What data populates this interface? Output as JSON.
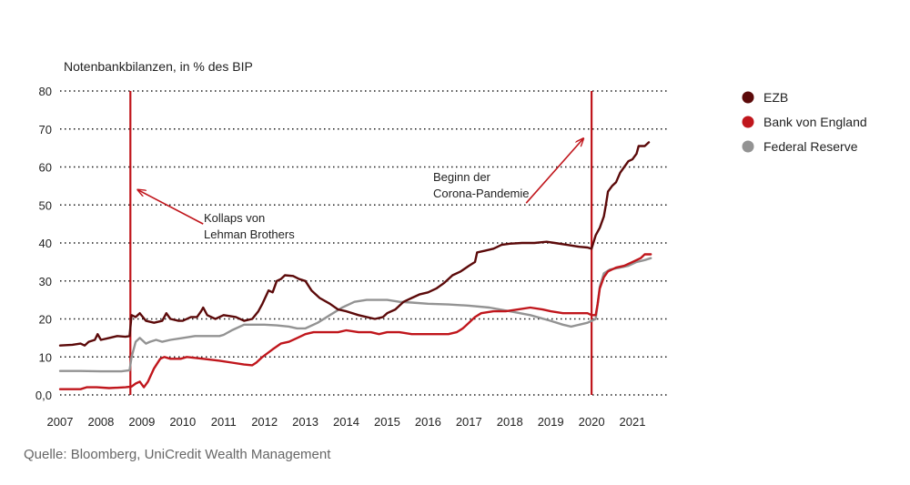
{
  "chart_data": {
    "type": "line",
    "ylabel": "Notenbankbilanzen, in % des BIP",
    "ylim": [
      0,
      80
    ],
    "xlim": [
      2007,
      2021.75
    ],
    "yticks": [
      0,
      10,
      20,
      30,
      40,
      50,
      60,
      70,
      80
    ],
    "ytick_labels": [
      "0,0",
      "10",
      "20",
      "30",
      "40",
      "50",
      "60",
      "70",
      "80"
    ],
    "xticks": [
      2007,
      2008,
      2009,
      2010,
      2011,
      2012,
      2013,
      2014,
      2015,
      2016,
      2017,
      2018,
      2019,
      2020,
      2021
    ],
    "xtick_labels": [
      "2007",
      "2008",
      "2009",
      "2010",
      "2011",
      "2012",
      "2013",
      "2014",
      "2015",
      "2016",
      "2017",
      "2018",
      "2019",
      "2020",
      "2021"
    ],
    "grid": "dotted horizontal",
    "legend_position": "top-right",
    "series": [
      {
        "name": "EZB",
        "color": "#5c0a0a",
        "points": [
          [
            2007.0,
            13.0
          ],
          [
            2007.3,
            13.2
          ],
          [
            2007.5,
            13.5
          ],
          [
            2007.6,
            13.0
          ],
          [
            2007.7,
            14.0
          ],
          [
            2007.85,
            14.5
          ],
          [
            2007.92,
            16.0
          ],
          [
            2008.0,
            14.5
          ],
          [
            2008.2,
            15.0
          ],
          [
            2008.4,
            15.5
          ],
          [
            2008.6,
            15.3
          ],
          [
            2008.7,
            15.5
          ],
          [
            2008.75,
            21.0
          ],
          [
            2008.85,
            20.5
          ],
          [
            2008.95,
            21.5
          ],
          [
            2009.1,
            19.5
          ],
          [
            2009.3,
            19.0
          ],
          [
            2009.5,
            19.5
          ],
          [
            2009.6,
            21.5
          ],
          [
            2009.7,
            20.0
          ],
          [
            2009.9,
            19.5
          ],
          [
            2010.0,
            19.5
          ],
          [
            2010.2,
            20.5
          ],
          [
            2010.35,
            20.5
          ],
          [
            2010.45,
            22.0
          ],
          [
            2010.5,
            23.0
          ],
          [
            2010.6,
            21.0
          ],
          [
            2010.8,
            20.0
          ],
          [
            2011.0,
            21.0
          ],
          [
            2011.3,
            20.5
          ],
          [
            2011.5,
            19.5
          ],
          [
            2011.7,
            20.0
          ],
          [
            2011.85,
            22.0
          ],
          [
            2011.95,
            24.0
          ],
          [
            2012.1,
            27.5
          ],
          [
            2012.2,
            27.0
          ],
          [
            2012.3,
            30.0
          ],
          [
            2012.4,
            30.5
          ],
          [
            2012.5,
            31.5
          ],
          [
            2012.7,
            31.3
          ],
          [
            2012.85,
            30.5
          ],
          [
            2013.0,
            30.0
          ],
          [
            2013.15,
            27.5
          ],
          [
            2013.35,
            25.5
          ],
          [
            2013.6,
            24.0
          ],
          [
            2013.8,
            22.5
          ],
          [
            2014.0,
            22.0
          ],
          [
            2014.3,
            21.0
          ],
          [
            2014.5,
            20.5
          ],
          [
            2014.7,
            20.0
          ],
          [
            2014.9,
            20.5
          ],
          [
            2015.0,
            21.5
          ],
          [
            2015.2,
            22.5
          ],
          [
            2015.4,
            24.5
          ],
          [
            2015.6,
            25.5
          ],
          [
            2015.8,
            26.5
          ],
          [
            2016.0,
            27.0
          ],
          [
            2016.2,
            28.0
          ],
          [
            2016.4,
            29.5
          ],
          [
            2016.6,
            31.5
          ],
          [
            2016.8,
            32.5
          ],
          [
            2017.0,
            34.0
          ],
          [
            2017.15,
            35.0
          ],
          [
            2017.2,
            37.5
          ],
          [
            2017.4,
            38.0
          ],
          [
            2017.6,
            38.5
          ],
          [
            2017.8,
            39.5
          ],
          [
            2018.0,
            39.8
          ],
          [
            2018.3,
            40.0
          ],
          [
            2018.6,
            40.0
          ],
          [
            2018.9,
            40.3
          ],
          [
            2019.1,
            40.0
          ],
          [
            2019.4,
            39.5
          ],
          [
            2019.7,
            39.0
          ],
          [
            2019.9,
            38.8
          ],
          [
            2020.0,
            38.5
          ],
          [
            2020.1,
            42.0
          ],
          [
            2020.2,
            44.0
          ],
          [
            2020.3,
            47.0
          ],
          [
            2020.35,
            50.0
          ],
          [
            2020.4,
            53.5
          ],
          [
            2020.5,
            55.0
          ],
          [
            2020.6,
            56.0
          ],
          [
            2020.7,
            58.5
          ],
          [
            2020.8,
            60.0
          ],
          [
            2020.9,
            61.5
          ],
          [
            2021.0,
            62.0
          ],
          [
            2021.1,
            63.5
          ],
          [
            2021.15,
            65.5
          ],
          [
            2021.3,
            65.5
          ],
          [
            2021.4,
            66.5
          ]
        ]
      },
      {
        "name": "Bank von England",
        "color": "#c0161c",
        "points": [
          [
            2007.0,
            1.5
          ],
          [
            2007.5,
            1.5
          ],
          [
            2007.65,
            2.0
          ],
          [
            2007.9,
            2.0
          ],
          [
            2008.2,
            1.8
          ],
          [
            2008.6,
            2.0
          ],
          [
            2008.75,
            2.2
          ],
          [
            2008.85,
            3.0
          ],
          [
            2008.95,
            3.5
          ],
          [
            2009.05,
            2.0
          ],
          [
            2009.15,
            3.5
          ],
          [
            2009.3,
            7.0
          ],
          [
            2009.45,
            9.5
          ],
          [
            2009.55,
            10.0
          ],
          [
            2009.7,
            9.5
          ],
          [
            2009.85,
            9.5
          ],
          [
            2009.95,
            9.5
          ],
          [
            2010.1,
            10.0
          ],
          [
            2010.5,
            9.5
          ],
          [
            2010.9,
            9.0
          ],
          [
            2011.2,
            8.5
          ],
          [
            2011.5,
            8.0
          ],
          [
            2011.7,
            7.8
          ],
          [
            2011.8,
            8.5
          ],
          [
            2011.95,
            10.0
          ],
          [
            2012.2,
            12.0
          ],
          [
            2012.4,
            13.5
          ],
          [
            2012.6,
            14.0
          ],
          [
            2012.8,
            15.0
          ],
          [
            2013.0,
            16.0
          ],
          [
            2013.2,
            16.5
          ],
          [
            2013.5,
            16.5
          ],
          [
            2013.8,
            16.5
          ],
          [
            2014.0,
            17.0
          ],
          [
            2014.3,
            16.5
          ],
          [
            2014.6,
            16.5
          ],
          [
            2014.8,
            16.0
          ],
          [
            2015.0,
            16.5
          ],
          [
            2015.3,
            16.5
          ],
          [
            2015.6,
            16.0
          ],
          [
            2015.9,
            16.0
          ],
          [
            2016.2,
            16.0
          ],
          [
            2016.5,
            16.0
          ],
          [
            2016.7,
            16.5
          ],
          [
            2016.85,
            17.5
          ],
          [
            2017.0,
            19.0
          ],
          [
            2017.15,
            20.5
          ],
          [
            2017.3,
            21.5
          ],
          [
            2017.6,
            22.0
          ],
          [
            2017.9,
            22.0
          ],
          [
            2018.2,
            22.5
          ],
          [
            2018.5,
            23.0
          ],
          [
            2018.8,
            22.5
          ],
          [
            2019.0,
            22.0
          ],
          [
            2019.3,
            21.5
          ],
          [
            2019.6,
            21.5
          ],
          [
            2019.9,
            21.5
          ],
          [
            2020.0,
            21.0
          ],
          [
            2020.1,
            21.0
          ],
          [
            2020.15,
            24.0
          ],
          [
            2020.2,
            28.0
          ],
          [
            2020.3,
            31.0
          ],
          [
            2020.4,
            32.5
          ],
          [
            2020.6,
            33.5
          ],
          [
            2020.8,
            34.0
          ],
          [
            2021.0,
            35.0
          ],
          [
            2021.2,
            36.0
          ],
          [
            2021.3,
            37.0
          ],
          [
            2021.45,
            37.0
          ]
        ]
      },
      {
        "name": "Federal Reserve",
        "color": "#939393",
        "points": [
          [
            2007.0,
            6.3
          ],
          [
            2007.5,
            6.3
          ],
          [
            2008.0,
            6.2
          ],
          [
            2008.5,
            6.2
          ],
          [
            2008.7,
            6.5
          ],
          [
            2008.75,
            10.0
          ],
          [
            2008.85,
            14.0
          ],
          [
            2008.95,
            15.0
          ],
          [
            2009.1,
            13.5
          ],
          [
            2009.2,
            14.0
          ],
          [
            2009.35,
            14.5
          ],
          [
            2009.5,
            14.0
          ],
          [
            2009.7,
            14.5
          ],
          [
            2010.0,
            15.0
          ],
          [
            2010.3,
            15.5
          ],
          [
            2010.6,
            15.5
          ],
          [
            2010.9,
            15.5
          ],
          [
            2011.0,
            15.8
          ],
          [
            2011.2,
            17.0
          ],
          [
            2011.5,
            18.5
          ],
          [
            2011.8,
            18.5
          ],
          [
            2012.0,
            18.5
          ],
          [
            2012.3,
            18.3
          ],
          [
            2012.6,
            18.0
          ],
          [
            2012.8,
            17.5
          ],
          [
            2013.0,
            17.5
          ],
          [
            2013.3,
            19.0
          ],
          [
            2013.6,
            21.0
          ],
          [
            2013.9,
            23.0
          ],
          [
            2014.2,
            24.5
          ],
          [
            2014.5,
            25.0
          ],
          [
            2014.8,
            25.0
          ],
          [
            2015.0,
            25.0
          ],
          [
            2015.3,
            24.5
          ],
          [
            2015.6,
            24.3
          ],
          [
            2016.0,
            24.0
          ],
          [
            2016.5,
            23.8
          ],
          [
            2017.0,
            23.5
          ],
          [
            2017.5,
            23.0
          ],
          [
            2018.0,
            22.0
          ],
          [
            2018.5,
            21.0
          ],
          [
            2019.0,
            19.5
          ],
          [
            2019.3,
            18.5
          ],
          [
            2019.5,
            18.0
          ],
          [
            2019.7,
            18.5
          ],
          [
            2019.9,
            19.0
          ],
          [
            2020.1,
            20.0
          ],
          [
            2020.15,
            24.0
          ],
          [
            2020.2,
            28.5
          ],
          [
            2020.3,
            32.0
          ],
          [
            2020.45,
            33.0
          ],
          [
            2020.7,
            33.5
          ],
          [
            2020.9,
            34.0
          ],
          [
            2021.1,
            35.0
          ],
          [
            2021.3,
            35.5
          ],
          [
            2021.45,
            36.0
          ]
        ]
      }
    ],
    "event_lines": [
      {
        "x": 2008.72,
        "color": "#c0161c"
      },
      {
        "x": 2020.0,
        "color": "#c0161c"
      }
    ],
    "annotations": [
      {
        "lines": [
          "Kollaps von",
          "Lehman Brothers"
        ],
        "arrow_from": [
          2010.5,
          45.0
        ],
        "arrow_to": [
          2008.9,
          54.0
        ]
      },
      {
        "lines": [
          "Beginn der",
          "Corona-Pandemie"
        ],
        "arrow_from": [
          2018.4,
          50.5
        ],
        "arrow_to": [
          2019.8,
          67.5
        ]
      }
    ]
  },
  "legend": [
    {
      "label": "EZB",
      "color": "#5c0a0a"
    },
    {
      "label": "Bank von England",
      "color": "#c0161c"
    },
    {
      "label": "Federal Reserve",
      "color": "#939393"
    }
  ],
  "source": "Quelle: Bloomberg, UniCredit Wealth Management"
}
